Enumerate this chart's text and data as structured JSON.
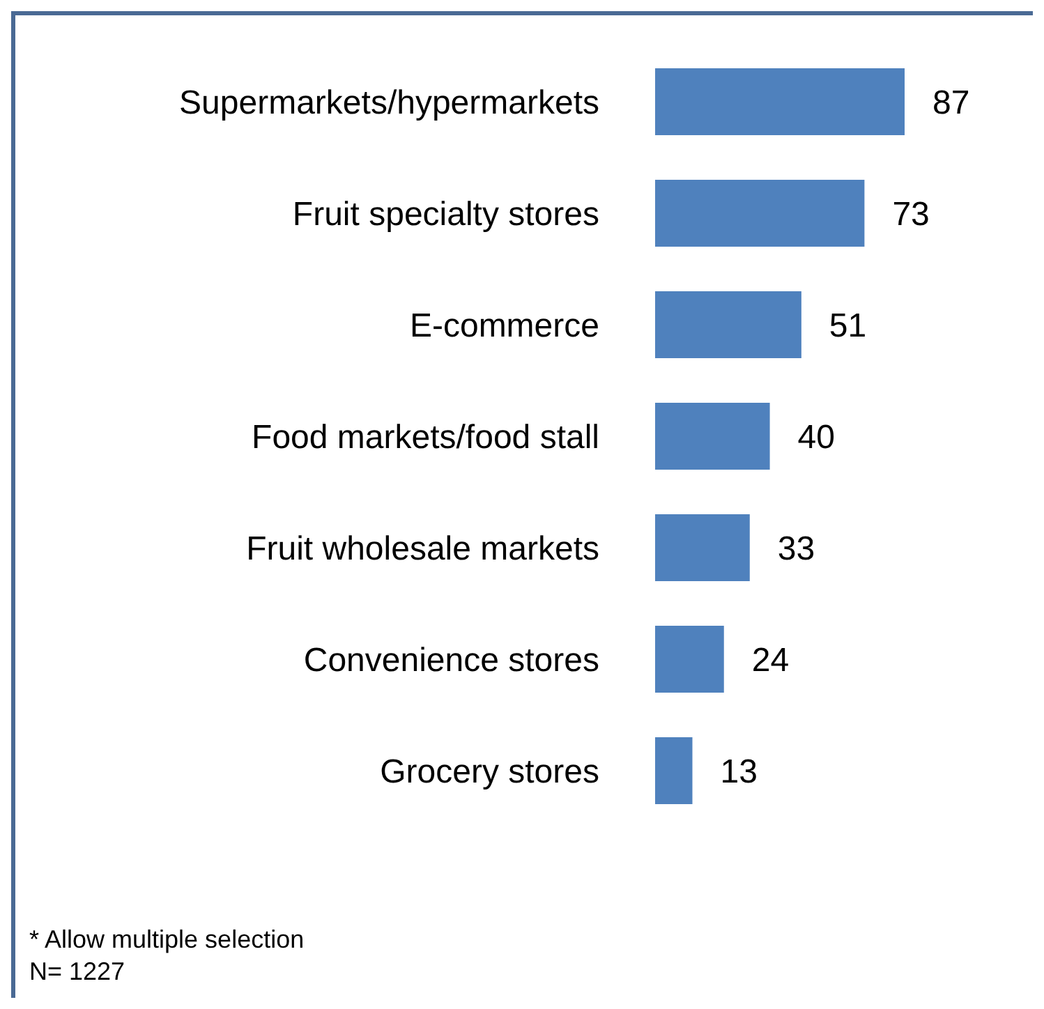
{
  "chart_data": {
    "type": "bar",
    "orientation": "horizontal",
    "categories": [
      "Supermarkets/hypermarkets",
      "Fruit specialty stores",
      "E-commerce",
      "Food markets/food stall",
      "Fruit wholesale markets",
      "Convenience stores",
      "Grocery stores"
    ],
    "values": [
      87,
      73,
      51,
      40,
      33,
      24,
      13
    ],
    "color": "#4f81bd",
    "data_labels": true,
    "annotations": [
      "* Allow multiple selection",
      "N= 1227"
    ]
  }
}
